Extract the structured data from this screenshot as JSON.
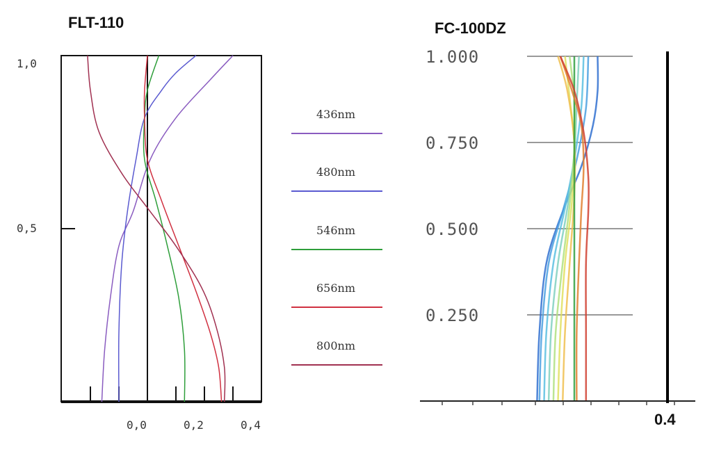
{
  "chart_data": [
    {
      "type": "line",
      "title": "FLT-110",
      "xlabel": "",
      "ylabel": "",
      "xlim": [
        -0.3,
        0.4
      ],
      "ylim": [
        0,
        1.0
      ],
      "x_ticks": [
        "0,0",
        "0,2",
        "0,4"
      ],
      "y_ticks": [
        "0,5",
        "1,0"
      ],
      "grid": false,
      "legend_position": "right",
      "series": [
        {
          "name": "436nm",
          "color": "#8a5cc0",
          "points": [
            [
              -0.16,
              0
            ],
            [
              -0.15,
              0.15
            ],
            [
              -0.13,
              0.3
            ],
            [
              -0.1,
              0.45
            ],
            [
              -0.05,
              0.55
            ],
            [
              0.01,
              0.7
            ],
            [
              0.1,
              0.82
            ],
            [
              0.22,
              0.93
            ],
            [
              0.3,
              1.0
            ]
          ]
        },
        {
          "name": "480nm",
          "color": "#5a5ad0",
          "points": [
            [
              -0.1,
              0
            ],
            [
              -0.1,
              0.2
            ],
            [
              -0.09,
              0.4
            ],
            [
              -0.07,
              0.55
            ],
            [
              -0.04,
              0.7
            ],
            [
              -0.01,
              0.82
            ],
            [
              0.05,
              0.9
            ],
            [
              0.1,
              0.95
            ],
            [
              0.17,
              1.0
            ]
          ]
        },
        {
          "name": "546nm",
          "color": "#2e9e3a",
          "points": [
            [
              0.13,
              0
            ],
            [
              0.13,
              0.15
            ],
            [
              0.11,
              0.3
            ],
            [
              0.07,
              0.45
            ],
            [
              0.03,
              0.58
            ],
            [
              -0.01,
              0.7
            ],
            [
              -0.01,
              0.82
            ],
            [
              0.0,
              0.9
            ],
            [
              0.04,
              1.0
            ]
          ]
        },
        {
          "name": "656nm",
          "color": "#d03040",
          "points": [
            [
              0.26,
              0
            ],
            [
              0.25,
              0.1
            ],
            [
              0.22,
              0.2
            ],
            [
              0.17,
              0.32
            ],
            [
              0.11,
              0.45
            ],
            [
              0.05,
              0.58
            ],
            [
              0.0,
              0.7
            ],
            [
              -0.01,
              0.82
            ],
            [
              -0.01,
              0.9
            ],
            [
              0.0,
              1.0
            ]
          ]
        },
        {
          "name": "800nm",
          "color": "#a03050",
          "points": [
            [
              0.27,
              0
            ],
            [
              0.27,
              0.1
            ],
            [
              0.24,
              0.22
            ],
            [
              0.19,
              0.33
            ],
            [
              0.1,
              0.45
            ],
            [
              0.0,
              0.56
            ],
            [
              -0.09,
              0.66
            ],
            [
              -0.17,
              0.78
            ],
            [
              -0.2,
              0.9
            ],
            [
              -0.21,
              1.0
            ]
          ]
        }
      ]
    },
    {
      "type": "line",
      "title": "FC-100DZ",
      "xlabel": "",
      "ylabel": "",
      "ylim": [
        0,
        1.0
      ],
      "y_ticks": [
        "0.250",
        "0.500",
        "0.750",
        "1.000"
      ],
      "x_tick_labels": [
        "0.4"
      ],
      "grid": true,
      "series": [
        {
          "color": "#3070d0",
          "points": [
            [
              -0.16,
              0
            ],
            [
              -0.15,
              0.2
            ],
            [
              -0.12,
              0.4
            ],
            [
              -0.05,
              0.55
            ],
            [
              0.03,
              0.68
            ],
            [
              0.08,
              0.8
            ],
            [
              0.1,
              0.9
            ],
            [
              0.1,
              1.0
            ]
          ]
        },
        {
          "color": "#4aa0e0",
          "points": [
            [
              -0.15,
              0
            ],
            [
              -0.14,
              0.2
            ],
            [
              -0.11,
              0.4
            ],
            [
              -0.05,
              0.55
            ],
            [
              0.01,
              0.7
            ],
            [
              0.05,
              0.85
            ],
            [
              0.06,
              1.0
            ]
          ]
        },
        {
          "color": "#5ac0e0",
          "points": [
            [
              -0.13,
              0
            ],
            [
              -0.12,
              0.2
            ],
            [
              -0.09,
              0.4
            ],
            [
              -0.04,
              0.56
            ],
            [
              0.0,
              0.7
            ],
            [
              0.03,
              0.85
            ],
            [
              0.04,
              1.0
            ]
          ]
        },
        {
          "color": "#80d0c0",
          "points": [
            [
              -0.11,
              0
            ],
            [
              -0.1,
              0.2
            ],
            [
              -0.07,
              0.4
            ],
            [
              -0.03,
              0.56
            ],
            [
              0.0,
              0.72
            ],
            [
              0.01,
              0.86
            ],
            [
              0.02,
              1.0
            ]
          ]
        },
        {
          "color": "#b0e080",
          "points": [
            [
              -0.09,
              0
            ],
            [
              -0.08,
              0.2
            ],
            [
              -0.05,
              0.4
            ],
            [
              -0.02,
              0.57
            ],
            [
              0.0,
              0.73
            ],
            [
              0.0,
              0.87
            ],
            [
              -0.02,
              1.0
            ]
          ]
        },
        {
          "color": "#e0e060",
          "points": [
            [
              -0.07,
              0
            ],
            [
              -0.06,
              0.2
            ],
            [
              -0.04,
              0.4
            ],
            [
              -0.01,
              0.58
            ],
            [
              0.0,
              0.74
            ],
            [
              -0.02,
              0.88
            ],
            [
              -0.04,
              1.0
            ]
          ]
        },
        {
          "color": "#f0c050",
          "points": [
            [
              -0.05,
              0
            ],
            [
              -0.04,
              0.2
            ],
            [
              -0.02,
              0.4
            ],
            [
              0.0,
              0.6
            ],
            [
              0.0,
              0.75
            ],
            [
              -0.03,
              0.9
            ],
            [
              -0.07,
              1.0
            ]
          ]
        },
        {
          "color": "#30a040",
          "points": [
            [
              0.0,
              0
            ],
            [
              0.0,
              0.2
            ],
            [
              0.0,
              0.4
            ],
            [
              0.0,
              0.6
            ],
            [
              0.0,
              0.8
            ],
            [
              0.0,
              0.9
            ],
            [
              0.0,
              1.0
            ]
          ]
        },
        {
          "color": "#e08030",
          "points": [
            [
              0.01,
              0
            ],
            [
              0.01,
              0.2
            ],
            [
              0.02,
              0.4
            ],
            [
              0.03,
              0.55
            ],
            [
              0.04,
              0.68
            ],
            [
              0.03,
              0.8
            ],
            [
              -0.01,
              0.9
            ],
            [
              -0.06,
              1.0
            ]
          ]
        },
        {
          "color": "#d04030",
          "points": [
            [
              0.05,
              0
            ],
            [
              0.05,
              0.2
            ],
            [
              0.05,
              0.4
            ],
            [
              0.06,
              0.55
            ],
            [
              0.06,
              0.65
            ],
            [
              0.04,
              0.78
            ],
            [
              0.0,
              0.9
            ],
            [
              -0.06,
              1.0
            ]
          ]
        }
      ]
    }
  ]
}
